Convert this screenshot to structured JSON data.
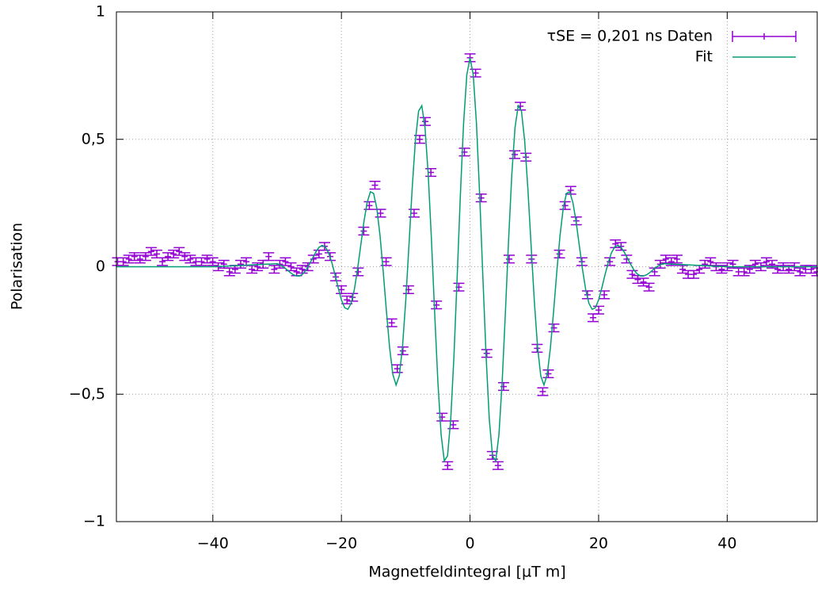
{
  "chart_data": {
    "type": "scatter",
    "xlabel": "Magnetfeldintegral [µT m]",
    "ylabel": "Polarisation",
    "xlim": [
      -55,
      54
    ],
    "ylim": [
      -1,
      1
    ],
    "xticks": [
      {
        "value": -40,
        "label": "−40"
      },
      {
        "value": -20,
        "label": "−20"
      },
      0,
      20,
      40
    ],
    "yticks": [
      {
        "value": -1,
        "label": "−1"
      },
      {
        "value": -0.5,
        "label": "−0,5"
      },
      0,
      {
        "value": 0.5,
        "label": "0,5"
      },
      1
    ],
    "grid": true,
    "legend": "upper right",
    "series": [
      {
        "name": "τSE = 0,201 ns Daten",
        "color": "#9400d3",
        "style": "errorbars",
        "error": 0.015,
        "x": [
          -54.81,
          -53.94,
          -53.07,
          -52.2,
          -51.33,
          -50.46,
          -49.59,
          -48.72,
          -47.85,
          -46.98,
          -46.11,
          -45.24,
          -44.37,
          -43.5,
          -42.63,
          -41.76,
          -40.89,
          -40.02,
          -39.15,
          -38.28,
          -37.41,
          -36.54,
          -35.67,
          -34.8,
          -33.93,
          -33.06,
          -32.19,
          -31.32,
          -30.45,
          -29.58,
          -28.71,
          -27.84,
          -26.97,
          -26.1,
          -25.23,
          -24.36,
          -23.49,
          -22.62,
          -21.75,
          -20.88,
          -20.01,
          -19.14,
          -18.27,
          -17.4,
          -16.53,
          -15.66,
          -14.79,
          -13.92,
          -13.05,
          -12.18,
          -11.31,
          -10.44,
          -9.57,
          -8.7,
          -7.83,
          -6.96,
          -6.09,
          -5.22,
          -4.35,
          -3.48,
          -2.61,
          -1.74,
          -0.87,
          0,
          0.87,
          1.74,
          2.61,
          3.48,
          4.35,
          5.22,
          6.09,
          6.96,
          7.83,
          8.7,
          9.57,
          10.44,
          11.31,
          12.18,
          13.05,
          13.92,
          14.79,
          15.66,
          16.53,
          17.4,
          18.27,
          19.14,
          20.01,
          20.88,
          21.75,
          22.62,
          23.49,
          24.36,
          25.23,
          26.1,
          26.97,
          27.84,
          28.71,
          29.58,
          30.45,
          31.32,
          32.19,
          33.06,
          33.93,
          34.8,
          35.67,
          36.54,
          37.41,
          38.28,
          39.15,
          40.02,
          40.89,
          41.76,
          42.63,
          43.5,
          44.37,
          45.24,
          46.11,
          46.98,
          47.85,
          48.72,
          49.59,
          50.46,
          51.33,
          52.2,
          53.07,
          53.94
        ],
        "values": [
          0.02,
          0.02,
          0.03,
          0.04,
          0.03,
          0.04,
          0.06,
          0.05,
          0.02,
          0.04,
          0.05,
          0.06,
          0.04,
          0.03,
          0.02,
          0.02,
          0.03,
          0.02,
          0.0,
          0.01,
          -0.02,
          -0.01,
          0.01,
          0.02,
          -0.01,
          0.0,
          0.01,
          0.04,
          -0.01,
          0.01,
          0.02,
          0.0,
          -0.02,
          -0.01,
          0.0,
          0.03,
          0.05,
          0.08,
          0.04,
          -0.04,
          -0.09,
          -0.13,
          -0.12,
          -0.02,
          0.14,
          0.24,
          0.32,
          0.21,
          0.02,
          -0.22,
          -0.4,
          -0.33,
          -0.09,
          0.21,
          0.5,
          0.57,
          0.37,
          -0.15,
          -0.59,
          -0.78,
          -0.62,
          -0.08,
          0.45,
          0.82,
          0.76,
          0.27,
          -0.34,
          -0.74,
          -0.78,
          -0.47,
          0.03,
          0.44,
          0.63,
          0.43,
          0.03,
          -0.32,
          -0.49,
          -0.42,
          -0.24,
          0.05,
          0.24,
          0.3,
          0.18,
          0.02,
          -0.11,
          -0.2,
          -0.17,
          -0.11,
          0.02,
          0.09,
          0.08,
          0.03,
          -0.03,
          -0.05,
          -0.06,
          -0.08,
          -0.02,
          0.01,
          0.03,
          0.02,
          0.03,
          -0.01,
          -0.03,
          -0.03,
          -0.01,
          0.01,
          0.02,
          0.0,
          -0.01,
          0.0,
          0.01,
          -0.02,
          -0.02,
          -0.01,
          0.01,
          0.0,
          0.02,
          0.01,
          -0.01,
          0.0,
          -0.01,
          0.0,
          -0.02,
          -0.01,
          -0.01,
          -0.02
        ]
      },
      {
        "name": "Fit",
        "color": "#009e73",
        "style": "line",
        "x": [
          -55,
          -40,
          -30,
          -29.5,
          -29,
          -28.5,
          -28,
          -27.5,
          -27,
          -26.5,
          -26,
          -25.5,
          -25,
          -24.5,
          -24,
          -23.5,
          -23,
          -22.5,
          -22,
          -21.5,
          -21,
          -20.5,
          -20,
          -19.5,
          -19,
          -18.5,
          -18,
          -17.5,
          -17,
          -16.5,
          -16,
          -15.5,
          -15,
          -14.5,
          -14,
          -13.5,
          -13,
          -12.5,
          -12,
          -11.5,
          -11,
          -10.5,
          -10,
          -9.5,
          -9,
          -8.5,
          -8,
          -7.5,
          -7,
          -6.5,
          -6,
          -5.5,
          -5,
          -4.5,
          -4,
          -3.5,
          -3,
          -2.5,
          -2,
          -1.5,
          -1,
          -0.5,
          0,
          0.5,
          1,
          1.5,
          2,
          2.5,
          3,
          3.5,
          4,
          4.5,
          5,
          5.5,
          6,
          6.5,
          7,
          7.5,
          8,
          8.5,
          9,
          9.5,
          10,
          10.5,
          11,
          11.5,
          12,
          12.5,
          13,
          13.5,
          14,
          14.5,
          15,
          15.5,
          16,
          16.5,
          17,
          17.5,
          18,
          18.5,
          19,
          19.5,
          20,
          20.5,
          21,
          21.5,
          22,
          22.5,
          23,
          23.5,
          24,
          24.5,
          25,
          25.5,
          26,
          26.5,
          27,
          27.5,
          28,
          28.5,
          29,
          29.5,
          30,
          40,
          54
        ],
        "values": [
          0,
          0,
          0.012,
          0.007,
          -0.001,
          -0.011,
          -0.022,
          -0.031,
          -0.036,
          -0.036,
          -0.028,
          -0.013,
          0.009,
          0.033,
          0.057,
          0.076,
          0.084,
          0.077,
          0.055,
          0.017,
          -0.031,
          -0.083,
          -0.13,
          -0.161,
          -0.167,
          -0.144,
          -0.091,
          -0.011,
          0.083,
          0.177,
          0.252,
          0.294,
          0.288,
          0.23,
          0.123,
          -0.019,
          -0.175,
          -0.319,
          -0.423,
          -0.464,
          -0.428,
          -0.313,
          -0.134,
          0.084,
          0.306,
          0.494,
          0.611,
          0.632,
          0.546,
          0.362,
          0.106,
          -0.18,
          -0.451,
          -0.658,
          -0.762,
          -0.742,
          -0.599,
          -0.351,
          -0.041,
          0.282,
          0.563,
          0.753,
          0.82,
          0.753,
          0.563,
          0.282,
          -0.041,
          -0.351,
          -0.599,
          -0.742,
          -0.762,
          -0.658,
          -0.451,
          -0.18,
          0.106,
          0.362,
          0.546,
          0.632,
          0.611,
          0.494,
          0.306,
          0.084,
          -0.134,
          -0.313,
          -0.428,
          -0.464,
          -0.423,
          -0.319,
          -0.175,
          -0.019,
          0.123,
          0.23,
          0.288,
          0.294,
          0.252,
          0.177,
          0.083,
          -0.011,
          -0.091,
          -0.144,
          -0.167,
          -0.161,
          -0.13,
          -0.083,
          -0.031,
          0.017,
          0.055,
          0.077,
          0.084,
          0.076,
          0.057,
          0.033,
          0.009,
          -0.013,
          -0.028,
          -0.036,
          -0.036,
          -0.031,
          -0.022,
          -0.011,
          -0.001,
          0.007,
          0.012,
          0,
          0
        ]
      }
    ]
  }
}
